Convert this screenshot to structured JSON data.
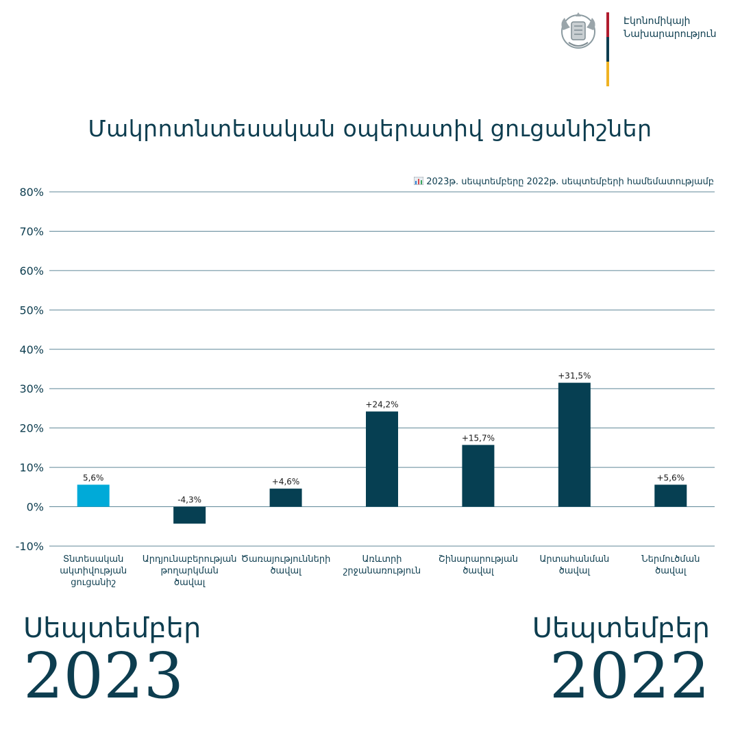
{
  "header": {
    "logo_icon": "armenia-coat-of-arms-icon",
    "ministry_line1": "Էկոնոմիկայի",
    "ministry_line2": "Նախարարություն",
    "flag_colors": [
      "#b01c2e",
      "#0d3d4f",
      "#f0b323"
    ]
  },
  "title": "Մակրոտնտեսական օպերատիվ ցուցանիշներ",
  "subtitle": {
    "icon": "bar-chart-emoji-icon",
    "text": "2023թ. սեպտեմբերը 2022թ. սեպտեմբերի համեմատությամբ"
  },
  "chart_data": {
    "type": "bar",
    "categories": [
      [
        "Տնտեսական",
        "ակտիվության",
        "ցուցանիշ"
      ],
      [
        "Արդյունաբերության",
        "թողարկման",
        "ծավալ"
      ],
      [
        "Ծառայությունների",
        "ծավալ"
      ],
      [
        "Առևտրի",
        "շրջանառություն"
      ],
      [
        "Շինարարության",
        "ծավալ"
      ],
      [
        "Արտահանման",
        "ծավալ"
      ],
      [
        "Ներմուծման",
        "ծավալ"
      ]
    ],
    "values": [
      5.6,
      -4.3,
      4.6,
      24.2,
      15.7,
      31.5,
      5.6
    ],
    "data_labels": [
      "5,6%",
      "-4,3%",
      "+4,6%",
      "+24,2%",
      "+15,7%",
      "+31,5%",
      "+5,6%"
    ],
    "bar_colors": [
      "#00aad8",
      "#063f52",
      "#063f52",
      "#063f52",
      "#063f52",
      "#063f52",
      "#063f52"
    ],
    "yticks": [
      "80%",
      "70%",
      "60%",
      "50%",
      "40%",
      "30%",
      "20%",
      "10%",
      "0%",
      "-10%"
    ],
    "ytick_values": [
      80,
      70,
      60,
      50,
      40,
      30,
      20,
      10,
      0,
      -10
    ],
    "ylim": [
      -10,
      80
    ],
    "grid": true,
    "gridline_color": "#5f8797"
  },
  "footer": {
    "left_month": "Սեպտեմբեր",
    "left_year": "2023",
    "right_month": "Սեպտեմբեր",
    "right_year": "2022"
  }
}
